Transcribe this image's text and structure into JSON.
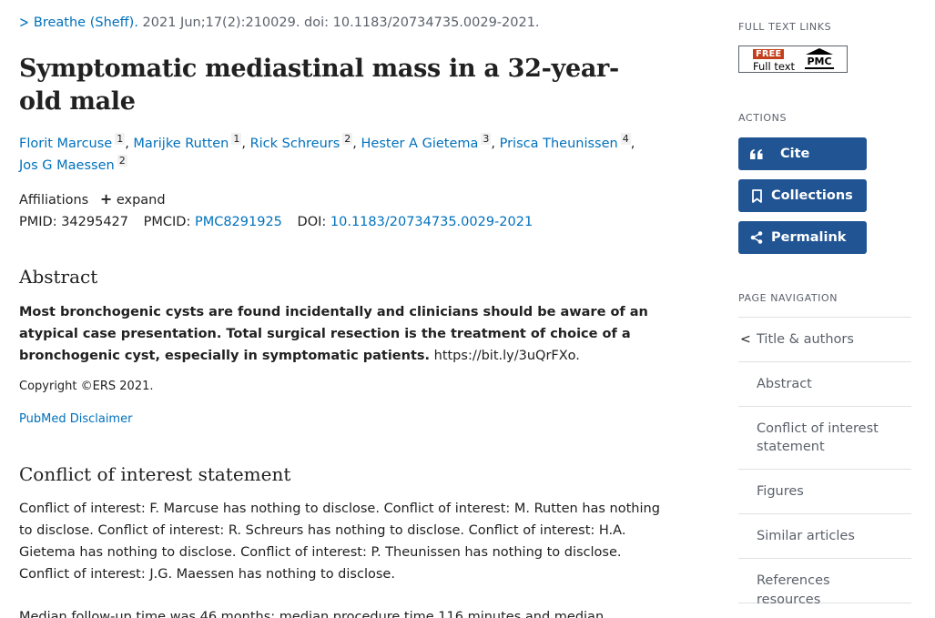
{
  "citation": {
    "journal": "Breathe (Sheff).",
    "details": "2021 Jun;17(2):210029. doi: 10.1183/20734735.0029-2021."
  },
  "article": {
    "title": "Symptomatic mediastinal mass in a 32-year-old male",
    "authors": [
      {
        "name": "Florit Marcuse",
        "aff": "1"
      },
      {
        "name": "Marijke Rutten",
        "aff": "1"
      },
      {
        "name": "Rick Schreurs",
        "aff": "2"
      },
      {
        "name": "Hester A Gietema",
        "aff": "3"
      },
      {
        "name": "Prisca Theunissen",
        "aff": "4"
      },
      {
        "name": "Jos G Maessen",
        "aff": "2"
      }
    ],
    "affiliations_label": "Affiliations",
    "expand_label": "expand",
    "pmid_label": "PMID:",
    "pmid": "34295427",
    "pmcid_label": "PMCID:",
    "pmcid": "PMC8291925",
    "doi_label": "DOI:",
    "doi": "10.1183/20734735.0029-2021"
  },
  "abstract": {
    "heading": "Abstract",
    "bold_text": "Most bronchogenic cysts are found incidentally and clinicians should be aware of an atypical case presentation. Total surgical resection is the treatment of choice of a bronchogenic cyst, especially in symptomatic patients.",
    "link_text": "https://bit.ly/3uQrFXo.",
    "copyright": "Copyright ©ERS 2021.",
    "disclaimer": "PubMed Disclaimer"
  },
  "coi": {
    "heading": "Conflict of interest statement",
    "text": "Conflict of interest: F. Marcuse has nothing to disclose. Conflict of interest: M. Rutten has nothing to disclose. Conflict of interest: R. Schreurs has nothing to disclose. Conflict of interest: H.A. Gietema has nothing to disclose. Conflict of interest: P. Theunissen has nothing to disclose. Conflict of interest: J.G. Maessen has nothing to disclose."
  },
  "cut_text": "Median follow-up time was 46 months; median procedure time 116 minutes and median",
  "sidebar": {
    "full_text_links_label": "FULL TEXT LINKS",
    "pmc_free": "FREE",
    "pmc_full_text": "Full text",
    "pmc_logo": "PMC",
    "actions_label": "ACTIONS",
    "cite_label": "Cite",
    "collections_label": "Collections",
    "permalink_label": "Permalink",
    "page_nav_label": "PAGE NAVIGATION",
    "nav_items": [
      "Title & authors",
      "Abstract",
      "Conflict of interest statement",
      "Figures",
      "Similar articles",
      "References"
    ],
    "nav_cut": "resources"
  }
}
